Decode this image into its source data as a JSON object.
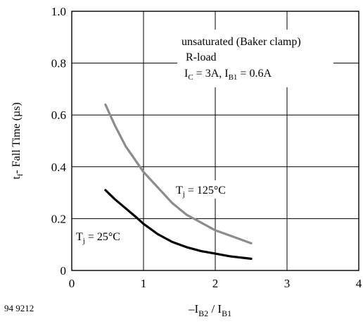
{
  "chart_data": {
    "type": "line",
    "title": "",
    "xlabel": "",
    "ylabel": "",
    "xlim": [
      0,
      4
    ],
    "ylim": [
      0,
      1.0
    ],
    "grid": true,
    "x_ticks": [
      "0",
      "1",
      "2",
      "3",
      "4"
    ],
    "y_ticks": [
      "0",
      "0.2",
      "0.4",
      "0.6",
      "0.8",
      "1.0"
    ],
    "ylabel_parts": {
      "main": "t",
      "sub": "f",
      "rest": "- Fall Time  (µs)"
    },
    "xlabel_parts": {
      "pre": "–I",
      "sub1": "B2",
      "mid": " / I",
      "sub2": "B1"
    },
    "figure_id": "94 9212",
    "annotation": {
      "line1": "unsaturated (Baker clamp)",
      "line2": "R-load",
      "line3_parts": {
        "a": "I",
        "a_sub": "C",
        "b": " = 3A, I",
        "b_sub": "B1",
        "c": " = 0.6A"
      }
    },
    "series": [
      {
        "label_parts": {
          "main": "T",
          "sub": "j",
          "rest": " = 125°C"
        },
        "color": "#8c8c8c",
        "x": [
          0.47,
          0.6,
          0.75,
          0.9,
          1.0,
          1.2,
          1.4,
          1.6,
          1.8,
          2.0,
          2.2,
          2.5
        ],
        "y": [
          0.64,
          0.56,
          0.48,
          0.42,
          0.38,
          0.32,
          0.26,
          0.215,
          0.185,
          0.155,
          0.135,
          0.105
        ]
      },
      {
        "label_parts": {
          "main": "T",
          "sub": "j",
          "rest": " = 25°C"
        },
        "color": "#000000",
        "x": [
          0.47,
          0.6,
          0.75,
          0.9,
          1.0,
          1.2,
          1.4,
          1.6,
          1.8,
          2.0,
          2.2,
          2.5
        ],
        "y": [
          0.31,
          0.275,
          0.24,
          0.205,
          0.18,
          0.14,
          0.11,
          0.09,
          0.075,
          0.065,
          0.055,
          0.045
        ]
      }
    ]
  }
}
